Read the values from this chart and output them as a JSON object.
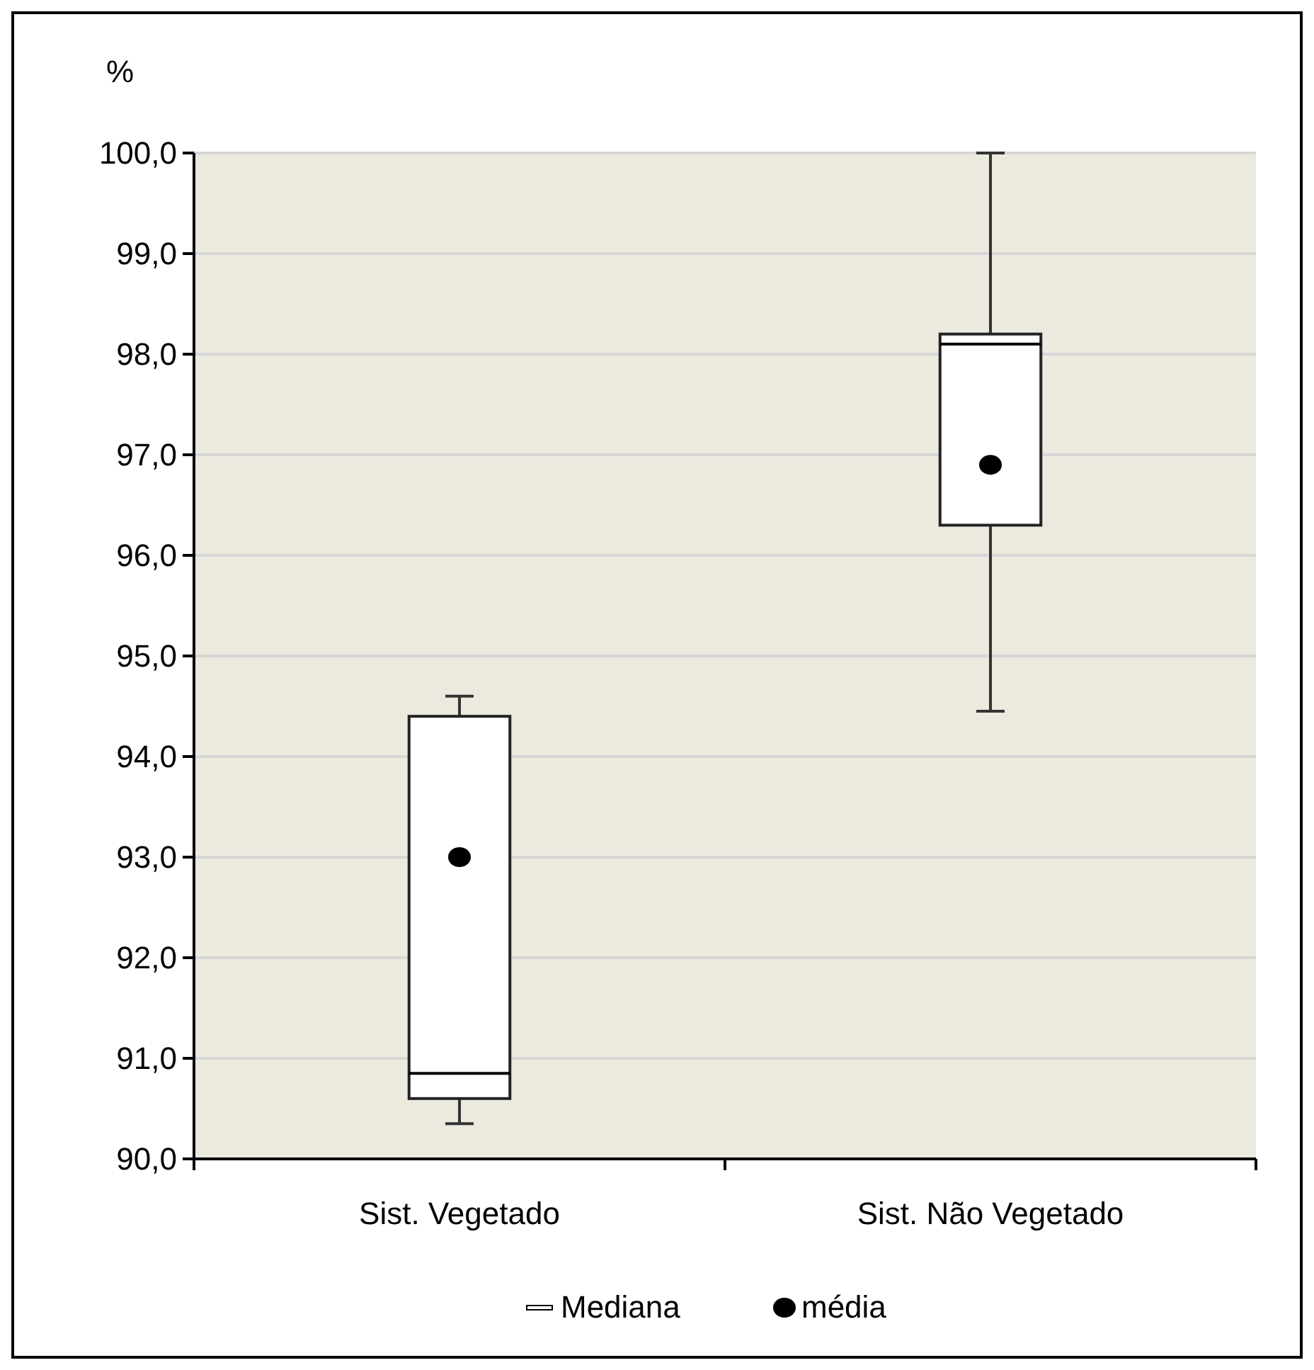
{
  "chart_data": {
    "type": "box",
    "ylabel": "%",
    "categories": [
      "Sist. Vegetado",
      "Sist. Não Vegetado"
    ],
    "ylim": [
      90,
      100
    ],
    "yticks": [
      {
        "value": 90,
        "label": "90,0"
      },
      {
        "value": 91,
        "label": "91,0"
      },
      {
        "value": 92,
        "label": "92,0"
      },
      {
        "value": 93,
        "label": "93,0"
      },
      {
        "value": 94,
        "label": "94,0"
      },
      {
        "value": 95,
        "label": "95,0"
      },
      {
        "value": 96,
        "label": "96,0"
      },
      {
        "value": 97,
        "label": "97,0"
      },
      {
        "value": 98,
        "label": "98,0"
      },
      {
        "value": 99,
        "label": "99,0"
      },
      {
        "value": 100,
        "label": "100,0"
      }
    ],
    "grid": "y",
    "legend": "bottom",
    "series": [
      {
        "name": "Mediana",
        "color": "#ffffff",
        "boxes": [
          {
            "low": 90.35,
            "q1": 90.6,
            "median": 90.85,
            "q3": 94.4,
            "high": 94.6
          },
          {
            "low": 94.45,
            "q1": 96.3,
            "median": 98.1,
            "q3": 98.2,
            "high": 100.0
          }
        ]
      },
      {
        "name": "média",
        "type": "scatter",
        "color": "#000000",
        "marker": "circle",
        "x": [
          "Sist. Vegetado",
          "Sist. Não Vegetado"
        ],
        "values": [
          93.0,
          96.9
        ]
      }
    ]
  }
}
